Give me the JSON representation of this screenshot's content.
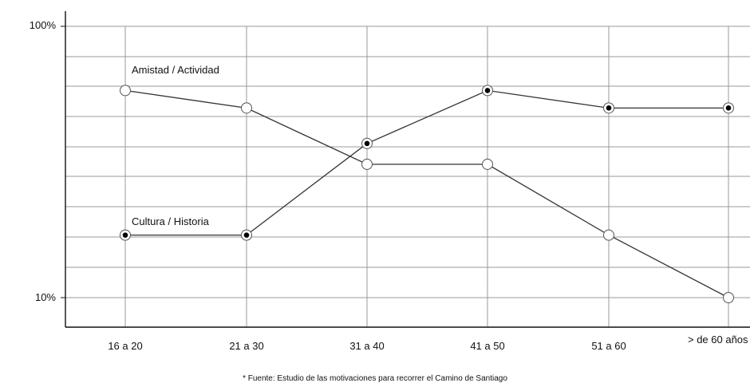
{
  "chart_data": {
    "type": "line",
    "title": "",
    "xlabel": "",
    "ylabel": "",
    "categories": [
      "16 a 20",
      "21 a 30",
      "31 a 40",
      "41 a 50",
      "51 a 60",
      "> de 60 años"
    ],
    "y_tick_labels": [
      "100%",
      "10%"
    ],
    "grid": true,
    "series": [
      {
        "name": "Amistad / Actividad",
        "marker": "open-circle",
        "values": [
          58,
          50,
          31,
          31,
          17,
          10
        ]
      },
      {
        "name": "Cultura / Historia",
        "marker": "filled-dot",
        "values": [
          17,
          17,
          37,
          58,
          50,
          50
        ]
      }
    ],
    "footnote": "* Fuente: Estudio de las motivaciones para recorrer el Camino de Santiago"
  }
}
